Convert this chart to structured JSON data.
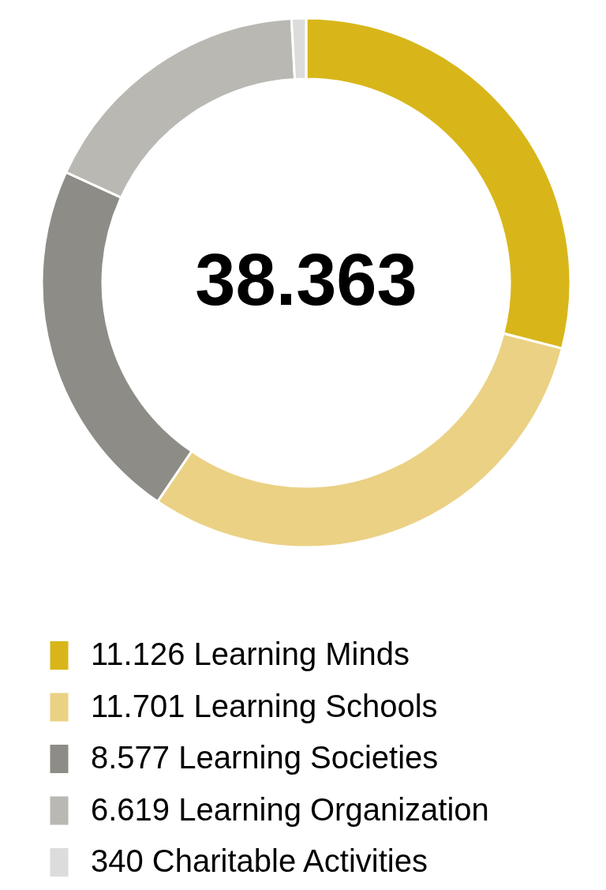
{
  "chart_data": {
    "type": "donut",
    "categories": [
      "Learning Minds",
      "Learning Schools",
      "Learning Societies",
      "Learning Organization",
      "Charitable Activities"
    ],
    "values": [
      11126,
      11701,
      8577,
      6619,
      340
    ],
    "value_labels": [
      "11.126",
      "11.701",
      "8.577",
      "6.619",
      "340"
    ],
    "colors": [
      "#d8b61a",
      "#ebd184",
      "#8d8c86",
      "#b9b8b3",
      "#dcdcdc"
    ],
    "annotations": [
      "38.363"
    ],
    "legend": "bottom"
  }
}
